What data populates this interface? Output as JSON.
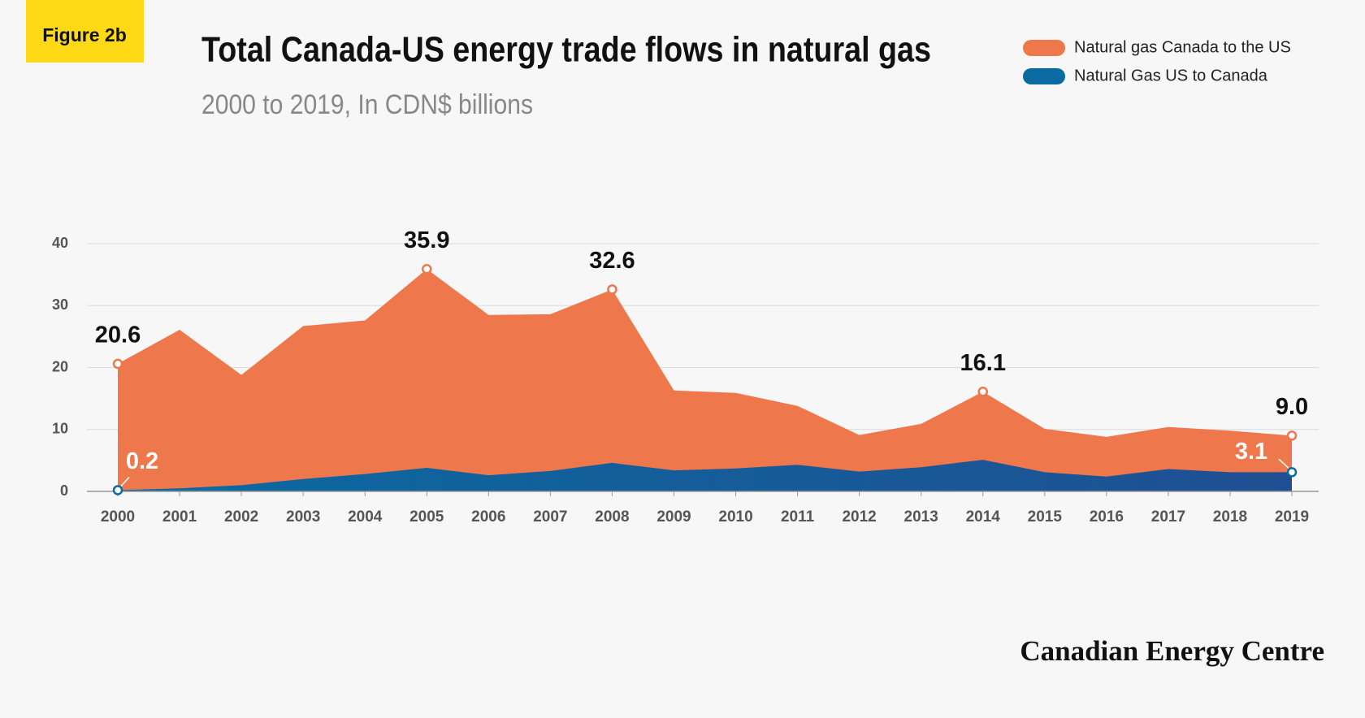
{
  "chart_data": {
    "type": "area",
    "figure_label": "Figure 2b",
    "title": "Total Canada-US energy trade flows in natural gas",
    "subtitle": "2000 to 2019, In CDN$ billions",
    "source": "Canadian Energy Centre",
    "categories": [
      "2000",
      "2001",
      "2002",
      "2003",
      "2004",
      "2005",
      "2006",
      "2007",
      "2008",
      "2009",
      "2010",
      "2011",
      "2012",
      "2013",
      "2014",
      "2015",
      "2016",
      "2017",
      "2018",
      "2019"
    ],
    "series": [
      {
        "name": "Natural gas Canada to the US",
        "color": "#ee774c",
        "values": [
          20.6,
          26.1,
          18.8,
          26.7,
          27.6,
          35.9,
          28.5,
          28.6,
          32.6,
          16.3,
          15.9,
          13.8,
          9.1,
          10.9,
          16.1,
          10.1,
          8.8,
          10.4,
          9.8,
          9.0
        ],
        "value_labels": [
          "20.6",
          null,
          null,
          null,
          null,
          "35.9",
          null,
          null,
          "32.6",
          null,
          null,
          null,
          null,
          null,
          "16.1",
          null,
          null,
          null,
          null,
          "9.0"
        ]
      },
      {
        "name": "Natural Gas US to Canada",
        "color": "#0a6aa1",
        "values": [
          0.2,
          0.5,
          1.0,
          2.0,
          2.8,
          3.8,
          2.6,
          3.3,
          4.6,
          3.4,
          3.7,
          4.3,
          3.2,
          3.9,
          5.1,
          3.1,
          2.4,
          3.6,
          3.1,
          3.1
        ],
        "value_labels": [
          "0.2",
          null,
          null,
          null,
          null,
          null,
          null,
          null,
          null,
          null,
          null,
          null,
          null,
          null,
          null,
          null,
          null,
          null,
          null,
          "3.1"
        ]
      }
    ],
    "ylim": [
      0,
      40
    ],
    "yticks": [
      0,
      10,
      20,
      30,
      40
    ],
    "grid": true
  }
}
